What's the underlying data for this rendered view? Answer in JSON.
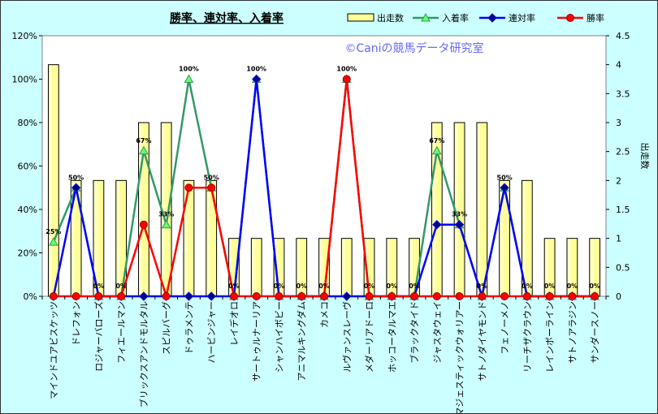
{
  "chart_data": {
    "type": "bar",
    "title": "勝率、連対率、入着率",
    "watermark": "©Caniの競馬データ研究室",
    "y2label": "出走数",
    "ylim": [
      0,
      120
    ],
    "yticks": [
      "0%",
      "20%",
      "40%",
      "60%",
      "80%",
      "100%",
      "120%"
    ],
    "y2lim": [
      0,
      4.5
    ],
    "y2ticks": [
      "0",
      "0.5",
      "1",
      "1.5",
      "2",
      "2.5",
      "3",
      "3.5",
      "4",
      "4.5"
    ],
    "categories": [
      "マインドユアビスケッツ",
      "ドレフォン",
      "ロジャーバローズ",
      "フィエールマン",
      "ブリックスアンドモルタル",
      "スピルバーグ",
      "ドゥラメンテ",
      "ハービンジャー",
      "レイデオロ",
      "サートゥルナーリア",
      "シャンハイボビー",
      "アニマルキングダム",
      "カメコ",
      "ルヴァンスレーヴ",
      "メダーリアドーロ",
      "ホッコータルマエ",
      "ブラックタイド",
      "ジャスタウェイ",
      "マジェスティックウォリアー",
      "サトノダイヤモンド",
      "フェノーメノ",
      "リーチザクラウン",
      "レインボーライン",
      "サトノアラジン",
      "サンダースノー"
    ],
    "series": [
      {
        "name": "出走数",
        "kind": "bar",
        "axis": "right",
        "color": "#ffff99",
        "values": [
          4,
          2,
          2,
          2,
          3,
          3,
          2,
          2,
          1,
          1,
          1,
          1,
          1,
          1,
          1,
          1,
          1,
          3,
          3,
          3,
          2,
          2,
          1,
          1,
          1
        ]
      },
      {
        "name": "入着率",
        "kind": "line",
        "axis": "left",
        "color": "#339966",
        "values": [
          25,
          50,
          0,
          0,
          67,
          33,
          100,
          50,
          0,
          100,
          0,
          0,
          0,
          100,
          0,
          0,
          0,
          67,
          33,
          0,
          50,
          0,
          0,
          0,
          0
        ]
      },
      {
        "name": "連対率",
        "kind": "line",
        "axis": "left",
        "color": "#0000ff",
        "values": [
          0,
          50,
          0,
          0,
          0,
          0,
          0,
          0,
          0,
          100,
          0,
          0,
          0,
          0,
          0,
          0,
          0,
          33,
          33,
          0,
          50,
          0,
          0,
          0,
          0
        ]
      },
      {
        "name": "勝率",
        "kind": "line",
        "axis": "left",
        "color": "#ff0000",
        "values": [
          0,
          0,
          0,
          0,
          33,
          0,
          50,
          50,
          0,
          0,
          0,
          0,
          0,
          100,
          0,
          0,
          0,
          0,
          0,
          0,
          0,
          0,
          0,
          0,
          0
        ]
      }
    ],
    "data_labels": [
      "25%",
      "50%",
      "0%",
      "0%",
      "67%",
      "33%",
      "100%",
      "50%",
      "0%",
      "100%",
      "0%",
      "0%",
      "0%",
      "100%",
      "0%",
      "0%",
      "0%",
      "67%",
      "33%",
      "0%",
      "50%",
      "0%",
      "0%",
      "0%",
      "0%"
    ],
    "legend": "top-right",
    "grid": false
  }
}
